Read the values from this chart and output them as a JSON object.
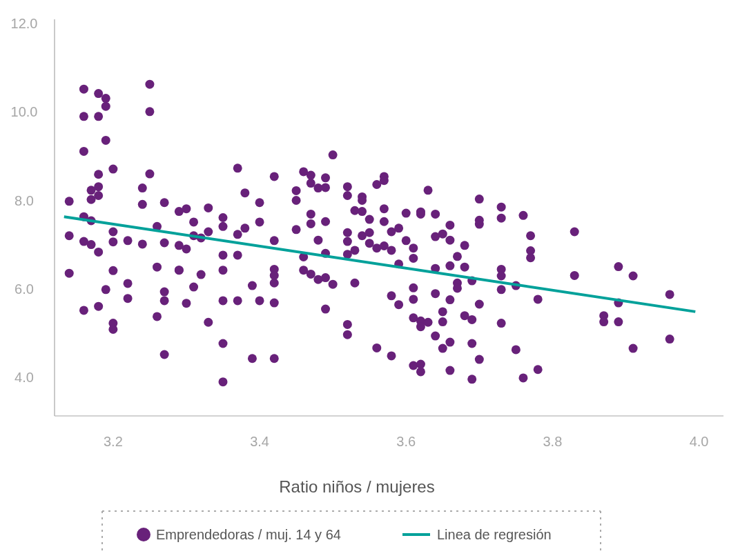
{
  "chart_data": {
    "type": "scatter",
    "xlabel": "Ratio niños / mujeres",
    "xlim": [
      3.12,
      4.04
    ],
    "xticks": [
      {
        "value": 3.2,
        "label": "3.2"
      },
      {
        "value": 3.4,
        "label": "3.4"
      },
      {
        "value": 3.6,
        "label": "3.6"
      },
      {
        "value": 3.8,
        "label": "3.8"
      },
      {
        "value": 4.0,
        "label": "4.0"
      }
    ],
    "ylim": [
      3.12,
      12.1
    ],
    "yticks": [
      {
        "value": 4,
        "label": "4.0"
      },
      {
        "value": 6,
        "label": "6.0"
      },
      {
        "value": 8,
        "label": "8.0"
      },
      {
        "value": 10,
        "label": "10.0"
      },
      {
        "value": 12,
        "label": "12.0"
      }
    ],
    "grid": false,
    "legend": "bottom",
    "marker": "circle",
    "series": [
      {
        "name": "Emprendedoras / muj. 14 y 64",
        "color": "#68217a",
        "x": [
          3.14,
          3.14,
          3.14,
          3.16,
          3.16,
          3.16,
          3.16,
          3.16,
          3.16,
          3.17,
          3.17,
          3.17,
          3.17,
          3.18,
          3.18,
          3.18,
          3.18,
          3.18,
          3.18,
          3.18,
          3.19,
          3.19,
          3.19,
          3.19,
          3.2,
          3.2,
          3.2,
          3.2,
          3.2,
          3.2,
          3.22,
          3.22,
          3.22,
          3.24,
          3.24,
          3.24,
          3.25,
          3.25,
          3.25,
          3.26,
          3.26,
          3.26,
          3.27,
          3.27,
          3.27,
          3.27,
          3.27,
          3.29,
          3.29,
          3.29,
          3.29,
          3.3,
          3.3,
          3.3,
          3.31,
          3.31,
          3.31,
          3.32,
          3.32,
          3.33,
          3.33,
          3.33,
          3.35,
          3.35,
          3.35,
          3.35,
          3.35,
          3.35,
          3.35,
          3.37,
          3.37,
          3.37,
          3.37,
          3.38,
          3.38,
          3.39,
          3.39,
          3.4,
          3.4,
          3.4,
          3.42,
          3.42,
          3.42,
          3.42,
          3.42,
          3.42,
          3.42,
          3.45,
          3.45,
          3.45,
          3.46,
          3.46,
          3.46,
          3.47,
          3.47,
          3.47,
          3.47,
          3.47,
          3.48,
          3.48,
          3.48,
          3.49,
          3.49,
          3.49,
          3.49,
          3.49,
          3.5,
          3.5,
          3.49,
          3.52,
          3.52,
          3.52,
          3.52,
          3.52,
          3.52,
          3.52,
          3.53,
          3.54,
          3.54,
          3.53,
          3.54,
          3.54,
          3.53,
          3.55,
          3.55,
          3.56,
          3.55,
          3.56,
          3.56,
          3.57,
          3.57,
          3.57,
          3.57,
          3.57,
          3.58,
          3.58,
          3.58,
          3.58,
          3.59,
          3.59,
          3.59,
          3.6,
          3.6,
          3.61,
          3.61,
          3.61,
          3.61,
          3.61,
          3.62,
          3.62,
          3.63,
          3.61,
          3.62,
          3.62,
          3.62,
          3.62,
          3.63,
          3.64,
          3.64,
          3.64,
          3.64,
          3.65,
          3.64,
          3.65,
          3.65,
          3.65,
          3.66,
          3.66,
          3.66,
          3.66,
          3.66,
          3.66,
          3.67,
          3.67,
          3.67,
          3.68,
          3.68,
          3.68,
          3.69,
          3.69,
          3.69,
          3.69,
          3.7,
          3.7,
          3.7,
          3.7,
          3.7,
          3.73,
          3.73,
          3.73,
          3.73,
          3.73,
          3.73,
          3.75,
          3.75,
          3.76,
          3.76,
          3.77,
          3.77,
          3.77,
          3.78,
          3.78,
          3.83,
          3.83,
          3.87,
          3.87,
          3.89,
          3.89,
          3.89,
          3.91,
          3.91,
          3.96,
          3.96
        ],
        "values": [
          7.98,
          7.2,
          6.35,
          5.51,
          7.07,
          7.63,
          10.52,
          9.9,
          9.11,
          8.23,
          8.02,
          7.54,
          7.0,
          10.42,
          9.9,
          8.59,
          5.6,
          6.83,
          8.31,
          8.11,
          5.98,
          10.31,
          10.13,
          9.36,
          8.71,
          7.29,
          7.06,
          6.41,
          5.22,
          5.08,
          7.09,
          6.12,
          5.78,
          8.28,
          7.91,
          7.01,
          10.63,
          10.01,
          8.6,
          7.41,
          6.49,
          5.37,
          7.95,
          7.04,
          5.93,
          5.73,
          4.51,
          6.98,
          6.42,
          6.42,
          7.75,
          7.81,
          5.67,
          6.9,
          6.04,
          7.2,
          7.51,
          6.32,
          7.15,
          7.83,
          7.29,
          5.24,
          7.61,
          7.41,
          6.76,
          6.42,
          5.73,
          4.76,
          3.89,
          6.76,
          5.73,
          8.73,
          7.23,
          7.37,
          8.17,
          6.07,
          4.42,
          7.51,
          7.95,
          5.73,
          8.54,
          7.09,
          6.44,
          6.13,
          5.68,
          4.42,
          6.3,
          8.22,
          8.0,
          7.34,
          8.65,
          6.72,
          6.42,
          8.57,
          8.39,
          7.69,
          7.47,
          6.33,
          7.1,
          6.21,
          8.28,
          8.29,
          8.51,
          5.54,
          7.52,
          6.25,
          9.03,
          6.1,
          6.8,
          8.31,
          7.27,
          7.07,
          6.78,
          5.19,
          4.96,
          8.11,
          6.13,
          8.08,
          8.0,
          7.77,
          7.75,
          7.2,
          6.87,
          7.27,
          7.03,
          8.36,
          7.57,
          6.92,
          4.66,
          6.97,
          8.45,
          8.54,
          7.81,
          7.52,
          7.29,
          4.48,
          5.84,
          6.87,
          7.37,
          5.64,
          6.56,
          7.71,
          7.09,
          6.92,
          6.69,
          6.02,
          5.34,
          5.76,
          7.69,
          7.74,
          8.23,
          4.26,
          4.29,
          4.12,
          5.27,
          5.14,
          5.24,
          5.89,
          6.46,
          7.18,
          7.69,
          5.25,
          4.93,
          5.48,
          4.65,
          7.24,
          7.44,
          7.1,
          5.75,
          4.79,
          4.15,
          6.52,
          6.13,
          6.73,
          6.01,
          5.39,
          6.98,
          6.49,
          6.18,
          3.95,
          5.3,
          4.76,
          8.03,
          7.46,
          7.55,
          5.65,
          4.4,
          5.98,
          5.22,
          7.85,
          7.6,
          6.44,
          6.29,
          6.07,
          4.62,
          3.98,
          7.66,
          7.2,
          6.86,
          6.7,
          5.76,
          4.17,
          7.29,
          6.3,
          5.39,
          5.25,
          6.5,
          5.68,
          5.25,
          6.29,
          4.65,
          5.87,
          4.86
        ]
      },
      {
        "type": "line",
        "marker": "none",
        "name": "Linea de regresión",
        "color": "#00a19a",
        "x": [
          3.133,
          3.995
        ],
        "values": [
          7.63,
          5.48
        ]
      }
    ]
  }
}
